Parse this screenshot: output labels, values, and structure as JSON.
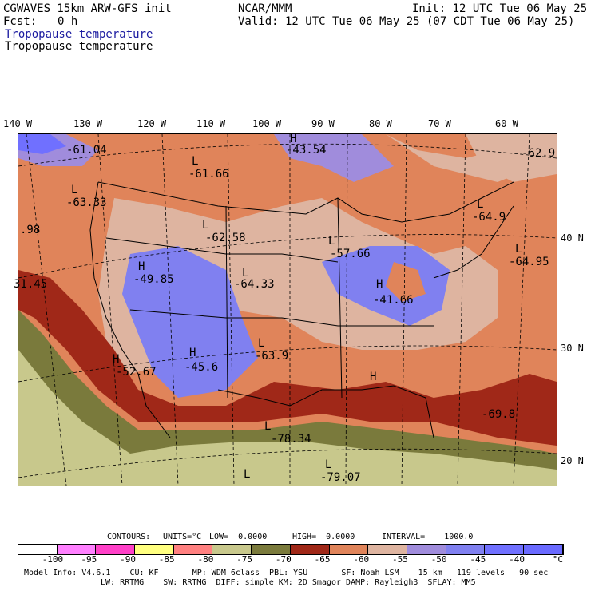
{
  "header": {
    "model": "CGWAVES 15km ARW-GFS init",
    "center": "NCAR/MMM",
    "init": "Init: 12 UTC Tue 06 May 25",
    "fcst_label": "Fcst:",
    "fcst_value": "0 h",
    "valid": "Valid: 12 UTC Tue 06 May 25 (07 CDT Tue 06 May 25)",
    "field_title_1": "Tropopause temperature",
    "field_title_2": "Tropopause temperature"
  },
  "longitude_labels": [
    "140 W",
    "130 W",
    "120 W",
    "110 W",
    "100 W",
    "90 W",
    "80 W",
    "70 W",
    "60 W"
  ],
  "latitude_labels": [
    "40 N",
    "30 N",
    "20 N"
  ],
  "map_labels": [
    {
      "type": "H",
      "value": "-43.54"
    },
    {
      "type": "",
      "value": "-61.04"
    },
    {
      "type": "L",
      "value": "-61.66"
    },
    {
      "type": "L",
      "value": "-63.33"
    },
    {
      "type": "",
      "value": "-62.9"
    },
    {
      "type": "L",
      "value": "-64.9"
    },
    {
      "type": "L",
      "value": "-62.58"
    },
    {
      "type": "L",
      "value": "-57.66"
    },
    {
      "type": "L",
      "value": "-64.95"
    },
    {
      "type": "",
      "value": ".98"
    },
    {
      "type": "H",
      "value": "-49.85"
    },
    {
      "type": "L",
      "value": "-64.33"
    },
    {
      "type": "H",
      "value": "-41.66"
    },
    {
      "type": "",
      "value": "31.45"
    },
    {
      "type": "H",
      "value": "-45.6"
    },
    {
      "type": "L",
      "value": "-63.9"
    },
    {
      "type": "H",
      "value": "-52.67"
    },
    {
      "type": "H",
      "value": ""
    },
    {
      "type": "",
      "value": "-69.8"
    },
    {
      "type": "L",
      "value": "-78.34"
    },
    {
      "type": "L",
      "value": "-79.07"
    },
    {
      "type": "L",
      "value": ""
    }
  ],
  "contour_info": {
    "contours": "CONTOURS:",
    "units": "UNITS=°C",
    "low": "LOW=  0.0000",
    "high": "HIGH=  0.0000",
    "interval": "INTERVAL=    1000.0"
  },
  "color_scale": {
    "colors": [
      "#ffffff",
      "#ff80ff",
      "#ff40c8",
      "#ffff80",
      "#ff8080",
      "#c8c88c",
      "#7a7a3c",
      "#a02818",
      "#e0845a",
      "#deb4a0",
      "#a08cdc",
      "#8080f0",
      "#7070ff",
      "#6a6aff"
    ],
    "ticks": [
      "-100",
      "-95",
      "-90",
      "-85",
      "-80",
      "-75",
      "-70",
      "-65",
      "-60",
      "-55",
      "-50",
      "-45",
      "-40",
      "°C"
    ]
  },
  "footer": {
    "line1": "Model Info: V4.6.1    CU: KF       MP: WDM 6class  PBL: YSU       SF: Noah LSM    15 km   119 levels   90 sec",
    "line2": "LW: RRTMG    SW: RRTMG  DIFF: simple KM: 2D Smagor DAMP: Rayleigh3  SFLAY: MM5"
  }
}
